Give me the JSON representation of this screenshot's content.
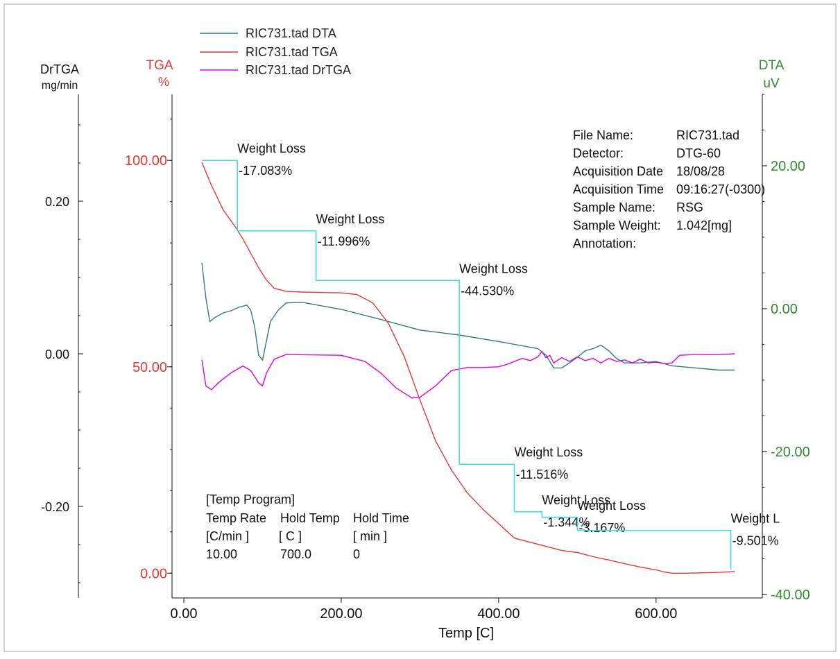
{
  "chart_data": {
    "type": "line",
    "title": "",
    "xlabel": "Temp  [C]",
    "xlim": [
      -15,
      735
    ],
    "xticks": [
      0,
      200,
      400,
      600
    ],
    "x_tick_labels": [
      "0.00",
      "200.00",
      "400.00",
      "600.00"
    ],
    "axes": {
      "drtga": {
        "label": "DrTGA",
        "unit": "mg/min",
        "color": "#111111",
        "ylim": [
          -0.32,
          0.34
        ],
        "ticks": [
          0.2,
          0.0,
          -0.2
        ],
        "tick_labels": [
          "0.20",
          "0.00",
          "-0.20"
        ]
      },
      "tga": {
        "label": "TGA",
        "unit": "%",
        "color": "#e53935",
        "ylim": [
          -6,
          116
        ],
        "ticks": [
          100,
          50,
          0
        ],
        "tick_labels": [
          "100.00",
          "50.00",
          "0.00"
        ]
      },
      "dta": {
        "label": "DTA",
        "unit": "uV",
        "color": "#2e8b2e",
        "ylim": [
          -40.5,
          30
        ],
        "ticks": [
          20,
          0,
          -20,
          -40
        ],
        "tick_labels": [
          "20.00",
          "0.00",
          "-20.00",
          "-40.00"
        ]
      }
    },
    "series": [
      {
        "name": "RIC731.tad  DTA",
        "axis": "dta",
        "color": "#2f7a7a",
        "points": [
          [
            23,
            6.4
          ],
          [
            28,
            1.5
          ],
          [
            33,
            -1.8
          ],
          [
            40,
            -1.2
          ],
          [
            50,
            -0.6
          ],
          [
            60,
            -0.3
          ],
          [
            70,
            0.2
          ],
          [
            80,
            0.5
          ],
          [
            85,
            -0.2
          ],
          [
            90,
            -2.5
          ],
          [
            95,
            -6.5
          ],
          [
            100,
            -7.2
          ],
          [
            105,
            -4.5
          ],
          [
            110,
            -1.8
          ],
          [
            120,
            -0.2
          ],
          [
            130,
            0.8
          ],
          [
            150,
            0.9
          ],
          [
            200,
            -0.1
          ],
          [
            250,
            -1.5
          ],
          [
            300,
            -3.0
          ],
          [
            350,
            -3.7
          ],
          [
            400,
            -4.6
          ],
          [
            450,
            -5.6
          ],
          [
            460,
            -6.5
          ],
          [
            470,
            -8.3
          ],
          [
            480,
            -8.3
          ],
          [
            490,
            -7.6
          ],
          [
            500,
            -6.8
          ],
          [
            510,
            -5.9
          ],
          [
            520,
            -5.6
          ],
          [
            530,
            -5.1
          ],
          [
            540,
            -5.9
          ],
          [
            550,
            -7.0
          ],
          [
            560,
            -7.6
          ],
          [
            580,
            -7.6
          ],
          [
            600,
            -7.4
          ],
          [
            620,
            -8.0
          ],
          [
            650,
            -8.3
          ],
          [
            680,
            -8.6
          ],
          [
            700,
            -8.6
          ]
        ]
      },
      {
        "name": "RIC731.tad  TGA",
        "axis": "tga",
        "color": "#e53935",
        "points": [
          [
            23,
            99.5
          ],
          [
            35,
            94
          ],
          [
            50,
            88
          ],
          [
            65,
            84
          ],
          [
            75,
            81
          ],
          [
            85,
            77.5
          ],
          [
            95,
            74
          ],
          [
            105,
            71
          ],
          [
            115,
            69
          ],
          [
            130,
            68.3
          ],
          [
            150,
            68.1
          ],
          [
            170,
            68.0
          ],
          [
            200,
            67.9
          ],
          [
            220,
            67.5
          ],
          [
            240,
            65.5
          ],
          [
            260,
            60.5
          ],
          [
            280,
            52.5
          ],
          [
            300,
            42
          ],
          [
            320,
            32
          ],
          [
            340,
            25
          ],
          [
            360,
            19.5
          ],
          [
            380,
            15.5
          ],
          [
            400,
            12
          ],
          [
            420,
            8.5
          ],
          [
            440,
            7.5
          ],
          [
            460,
            6.5
          ],
          [
            480,
            5.5
          ],
          [
            500,
            5.0
          ],
          [
            520,
            4.0
          ],
          [
            540,
            3.2
          ],
          [
            560,
            2.3
          ],
          [
            580,
            1.5
          ],
          [
            600,
            0.8
          ],
          [
            610,
            0.3
          ],
          [
            620,
            0.0
          ],
          [
            640,
            0.0
          ],
          [
            680,
            0.2
          ],
          [
            700,
            0.4
          ]
        ]
      },
      {
        "name": "RIC731.tad  DrTGA",
        "axis": "drtga",
        "color": "#e000e0",
        "points": [
          [
            23,
            -0.008
          ],
          [
            28,
            -0.042
          ],
          [
            35,
            -0.047
          ],
          [
            45,
            -0.037
          ],
          [
            60,
            -0.025
          ],
          [
            75,
            -0.016
          ],
          [
            85,
            -0.022
          ],
          [
            95,
            -0.038
          ],
          [
            100,
            -0.042
          ],
          [
            105,
            -0.025
          ],
          [
            115,
            -0.007
          ],
          [
            130,
            -0.001
          ],
          [
            200,
            -0.002
          ],
          [
            230,
            -0.01
          ],
          [
            250,
            -0.025
          ],
          [
            270,
            -0.045
          ],
          [
            290,
            -0.058
          ],
          [
            300,
            -0.057
          ],
          [
            320,
            -0.042
          ],
          [
            340,
            -0.022
          ],
          [
            360,
            -0.018
          ],
          [
            380,
            -0.018
          ],
          [
            400,
            -0.017
          ],
          [
            410,
            -0.014
          ],
          [
            420,
            -0.01
          ],
          [
            430,
            -0.006
          ],
          [
            440,
            -0.009
          ],
          [
            450,
            -0.004
          ],
          [
            455,
            0.003
          ],
          [
            460,
            -0.005
          ],
          [
            465,
            -0.002
          ],
          [
            470,
            -0.012
          ],
          [
            480,
            -0.005
          ],
          [
            490,
            -0.01
          ],
          [
            500,
            -0.004
          ],
          [
            510,
            -0.009
          ],
          [
            520,
            -0.006
          ],
          [
            530,
            -0.012
          ],
          [
            540,
            -0.006
          ],
          [
            550,
            -0.01
          ],
          [
            560,
            -0.008
          ],
          [
            570,
            -0.012
          ],
          [
            580,
            -0.007
          ],
          [
            590,
            -0.012
          ],
          [
            600,
            -0.011
          ],
          [
            610,
            -0.013
          ],
          [
            620,
            -0.012
          ],
          [
            630,
            -0.002
          ],
          [
            650,
            -0.001
          ],
          [
            680,
            -0.001
          ],
          [
            700,
            0.0
          ]
        ]
      }
    ],
    "weight_loss_steps": [
      {
        "from_temp": 23,
        "to_temp": 68,
        "from_pct": 100,
        "to_pct": 82.917,
        "label": "Weight Loss",
        "value": "-17.083%"
      },
      {
        "from_temp": 68,
        "to_temp": 168,
        "from_pct": 82.917,
        "to_pct": 70.921,
        "label": "Weight Loss",
        "value": "-11.996%"
      },
      {
        "from_temp": 168,
        "to_temp": 350,
        "from_pct": 70.921,
        "to_pct": 26.391,
        "label": "Weight Loss",
        "value": "-44.530%"
      },
      {
        "from_temp": 350,
        "to_temp": 420,
        "from_pct": 26.391,
        "to_pct": 14.875,
        "label": "Weight Loss",
        "value": "-11.516%"
      },
      {
        "from_temp": 420,
        "to_temp": 455,
        "from_pct": 14.875,
        "to_pct": 13.531,
        "label": "Weight Loss",
        "value": "-1.344%"
      },
      {
        "from_temp": 455,
        "to_temp": 500,
        "from_pct": 13.531,
        "to_pct": 10.364,
        "label": "Weight Loss",
        "value": "-3.167%"
      },
      {
        "from_temp": 500,
        "to_temp": 695,
        "from_pct": 10.364,
        "to_pct": 0.863,
        "label": "Weight L",
        "value": "-9.501%"
      }
    ],
    "step_color": "#33e0e8",
    "legend_position": "top-left",
    "grid": false
  },
  "info": {
    "labels": [
      "File Name:",
      "Detector:",
      "Acquisition Date",
      "Acquisition Time",
      "Sample Name:",
      "Sample Weight:",
      "Annotation:"
    ],
    "values": [
      "RIC731.tad",
      "DTG-60",
      "18/08/28",
      "09:16:27(-0300)",
      "RSG",
      "1.042[mg]",
      ""
    ]
  },
  "temp_program": {
    "title": "[Temp Program]",
    "headers": [
      "Temp Rate",
      "Hold Temp",
      "Hold Time"
    ],
    "units": [
      "[C/min ]",
      "[  C  ]",
      "[  min  ]"
    ],
    "values": [
      "10.00",
      "700.0",
      "0"
    ]
  }
}
